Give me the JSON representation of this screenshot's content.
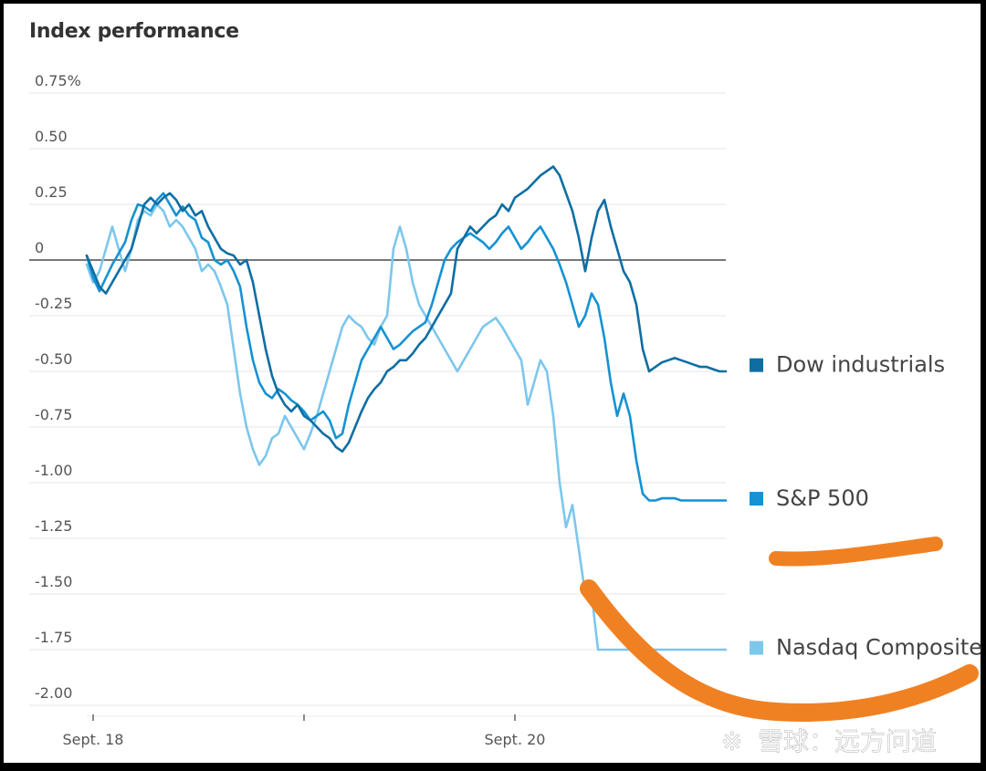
{
  "chart_data": {
    "type": "line",
    "title": "Index performance",
    "ylim": [
      -2.0,
      0.75
    ],
    "y_ticks": [
      "0.75%",
      "0.50",
      "0.25",
      "0",
      "-0.25",
      "-0.50",
      "-0.75",
      "-1.00",
      "-1.25",
      "-1.50",
      "-1.75",
      "-2.00"
    ],
    "y_tick_values": [
      0.75,
      0.5,
      0.25,
      0,
      -0.25,
      -0.5,
      -0.75,
      -1.0,
      -1.25,
      -1.5,
      -1.75,
      -2.0
    ],
    "x_range": [
      0,
      100
    ],
    "x_ticks": [
      {
        "x": 1,
        "label": "Sept. 18"
      },
      {
        "x": 34,
        "label": ""
      },
      {
        "x": 67,
        "label": "Sept. 20"
      }
    ],
    "series": [
      {
        "name": "Dow industrials",
        "color": "#0e6ea3",
        "x": [
          0,
          1,
          2,
          3,
          4,
          5,
          6,
          7,
          8,
          9,
          10,
          11,
          12,
          13,
          14,
          15,
          16,
          17,
          18,
          19,
          20,
          21,
          22,
          23,
          24,
          25,
          26,
          27,
          28,
          29,
          30,
          31,
          32,
          33,
          34,
          35,
          36,
          37,
          38,
          39,
          40,
          41,
          42,
          43,
          44,
          45,
          46,
          47,
          48,
          49,
          50,
          51,
          52,
          53,
          54,
          55,
          56,
          57,
          58,
          59,
          60,
          61,
          62,
          63,
          64,
          65,
          66,
          67,
          68,
          69,
          70,
          71,
          72,
          73,
          74,
          75,
          76,
          77,
          78,
          79,
          80,
          81,
          82,
          83,
          84,
          85,
          86,
          87,
          88,
          89,
          90,
          91,
          92,
          93,
          94,
          95,
          96,
          97,
          98,
          99,
          100
        ],
        "values": [
          0.02,
          -0.05,
          -0.12,
          -0.15,
          -0.1,
          -0.05,
          0,
          0.05,
          0.15,
          0.25,
          0.28,
          0.25,
          0.28,
          0.3,
          0.27,
          0.22,
          0.25,
          0.2,
          0.22,
          0.15,
          0.1,
          0.05,
          0.03,
          0.02,
          -0.02,
          0,
          -0.1,
          -0.25,
          -0.4,
          -0.52,
          -0.6,
          -0.65,
          -0.68,
          -0.65,
          -0.7,
          -0.72,
          -0.75,
          -0.78,
          -0.8,
          -0.84,
          -0.86,
          -0.82,
          -0.75,
          -0.68,
          -0.62,
          -0.58,
          -0.55,
          -0.5,
          -0.48,
          -0.45,
          -0.45,
          -0.42,
          -0.38,
          -0.35,
          -0.3,
          -0.25,
          -0.2,
          -0.15,
          0.05,
          0.1,
          0.15,
          0.12,
          0.15,
          0.18,
          0.2,
          0.25,
          0.22,
          0.28,
          0.3,
          0.32,
          0.35,
          0.38,
          0.4,
          0.42,
          0.38,
          0.3,
          0.22,
          0.1,
          -0.05,
          0.1,
          0.22,
          0.27,
          0.15,
          0.05,
          -0.05,
          -0.1,
          -0.2,
          -0.4,
          -0.5,
          -0.48,
          -0.46,
          -0.45,
          -0.44,
          -0.45,
          -0.46,
          -0.47,
          -0.48,
          -0.48,
          -0.49,
          -0.5,
          -0.5
        ],
        "label_y": -0.47
      },
      {
        "name": "S&P 500",
        "color": "#1592d3",
        "x": [
          0,
          1,
          2,
          3,
          4,
          5,
          6,
          7,
          8,
          9,
          10,
          11,
          12,
          13,
          14,
          15,
          16,
          17,
          18,
          19,
          20,
          21,
          22,
          23,
          24,
          25,
          26,
          27,
          28,
          29,
          30,
          31,
          32,
          33,
          34,
          35,
          36,
          37,
          38,
          39,
          40,
          41,
          42,
          43,
          44,
          45,
          46,
          47,
          48,
          49,
          50,
          51,
          52,
          53,
          54,
          55,
          56,
          57,
          58,
          59,
          60,
          61,
          62,
          63,
          64,
          65,
          66,
          67,
          68,
          69,
          70,
          71,
          72,
          73,
          74,
          75,
          76,
          77,
          78,
          79,
          80,
          81,
          82,
          83,
          84,
          85,
          86,
          87,
          88,
          89,
          90,
          91,
          92,
          93,
          94,
          95,
          96,
          97,
          98,
          99,
          100
        ],
        "values": [
          0.02,
          -0.08,
          -0.14,
          -0.08,
          -0.02,
          0.03,
          0.08,
          0.18,
          0.25,
          0.24,
          0.22,
          0.27,
          0.3,
          0.25,
          0.2,
          0.24,
          0.2,
          0.18,
          0.1,
          0.08,
          0,
          -0.02,
          0,
          -0.05,
          -0.12,
          -0.3,
          -0.45,
          -0.55,
          -0.6,
          -0.62,
          -0.58,
          -0.6,
          -0.63,
          -0.65,
          -0.68,
          -0.72,
          -0.7,
          -0.68,
          -0.72,
          -0.8,
          -0.78,
          -0.65,
          -0.55,
          -0.45,
          -0.4,
          -0.35,
          -0.3,
          -0.35,
          -0.4,
          -0.38,
          -0.35,
          -0.32,
          -0.3,
          -0.28,
          -0.2,
          -0.1,
          0,
          0.05,
          0.08,
          0.1,
          0.12,
          0.1,
          0.08,
          0.05,
          0.08,
          0.12,
          0.15,
          0.1,
          0.05,
          0.08,
          0.12,
          0.15,
          0.1,
          0.05,
          -0.02,
          -0.1,
          -0.2,
          -0.3,
          -0.25,
          -0.15,
          -0.2,
          -0.35,
          -0.55,
          -0.7,
          -0.6,
          -0.7,
          -0.9,
          -1.05,
          -1.08,
          -1.08,
          -1.07,
          -1.07,
          -1.07,
          -1.08,
          -1.08,
          -1.08,
          -1.08,
          -1.08,
          -1.08,
          -1.08,
          -1.08
        ],
        "label_y": -1.07
      },
      {
        "name": "Nasdaq Composite",
        "color": "#7cc7ec",
        "x": [
          0,
          1,
          2,
          3,
          4,
          5,
          6,
          7,
          8,
          9,
          10,
          11,
          12,
          13,
          14,
          15,
          16,
          17,
          18,
          19,
          20,
          21,
          22,
          23,
          24,
          25,
          26,
          27,
          28,
          29,
          30,
          31,
          32,
          33,
          34,
          35,
          36,
          37,
          38,
          39,
          40,
          41,
          42,
          43,
          44,
          45,
          46,
          47,
          48,
          49,
          50,
          51,
          52,
          53,
          54,
          55,
          56,
          57,
          58,
          59,
          60,
          61,
          62,
          63,
          64,
          65,
          66,
          67,
          68,
          69,
          70,
          71,
          72,
          73,
          74,
          75,
          76,
          77,
          78,
          79,
          80,
          81,
          82,
          83,
          84,
          85,
          86,
          87,
          88,
          89,
          90,
          91,
          92,
          93,
          94,
          95,
          96,
          97,
          98,
          99,
          100
        ],
        "values": [
          -0.02,
          -0.1,
          -0.05,
          0.05,
          0.15,
          0.05,
          -0.05,
          0.05,
          0.18,
          0.22,
          0.2,
          0.25,
          0.22,
          0.15,
          0.18,
          0.15,
          0.1,
          0.05,
          -0.05,
          -0.02,
          -0.05,
          -0.12,
          -0.2,
          -0.4,
          -0.6,
          -0.75,
          -0.85,
          -0.92,
          -0.88,
          -0.8,
          -0.78,
          -0.7,
          -0.75,
          -0.8,
          -0.85,
          -0.78,
          -0.7,
          -0.6,
          -0.5,
          -0.4,
          -0.3,
          -0.25,
          -0.28,
          -0.3,
          -0.35,
          -0.38,
          -0.3,
          -0.25,
          0.05,
          0.15,
          0.05,
          -0.1,
          -0.2,
          -0.25,
          -0.3,
          -0.35,
          -0.4,
          -0.45,
          -0.5,
          -0.45,
          -0.4,
          -0.35,
          -0.3,
          -0.28,
          -0.26,
          -0.3,
          -0.35,
          -0.4,
          -0.45,
          -0.65,
          -0.55,
          -0.45,
          -0.5,
          -0.7,
          -1.0,
          -1.2,
          -1.1,
          -1.3,
          -1.5,
          -1.5,
          -1.75,
          -1.75,
          -1.75,
          -1.75,
          -1.75,
          -1.75,
          -1.75,
          -1.75,
          -1.75,
          -1.75,
          -1.75,
          -1.75,
          -1.75,
          -1.75,
          -1.75,
          -1.75,
          -1.75,
          -1.75,
          -1.75,
          -1.75,
          -1.75
        ],
        "label_y": -1.74
      }
    ]
  },
  "watermark": {
    "text": "雪球：远方问道",
    "mark": "※"
  },
  "annotation_color": "#f08122"
}
